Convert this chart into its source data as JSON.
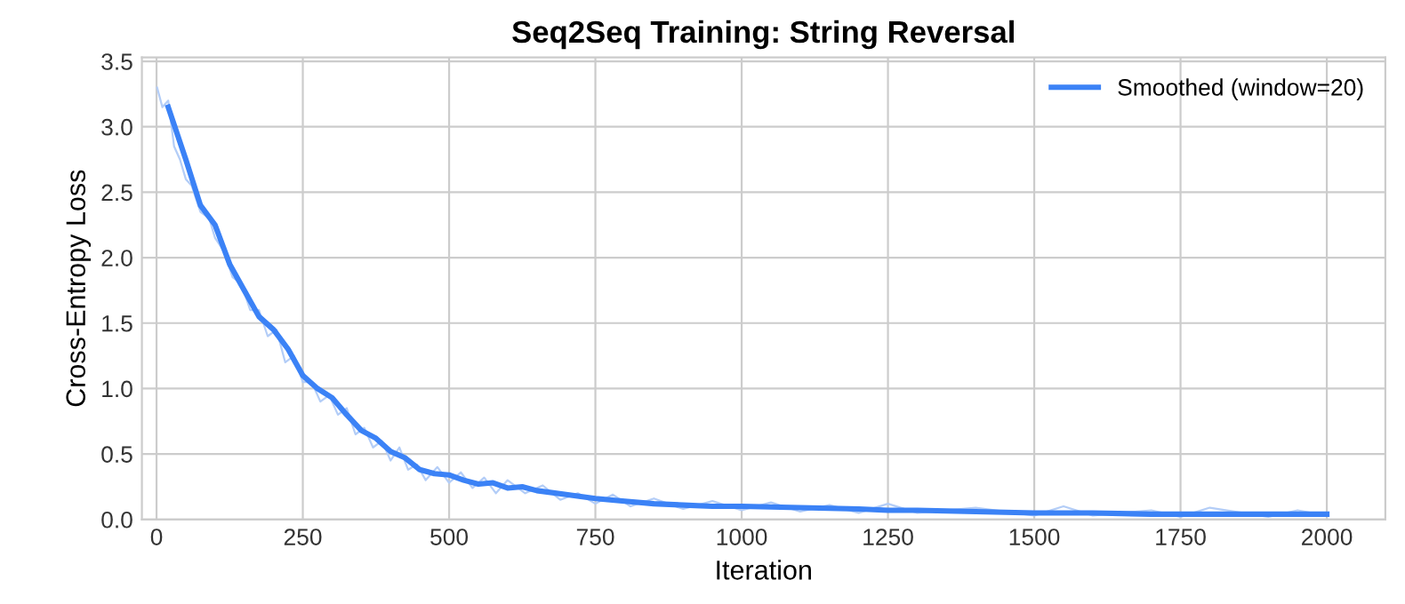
{
  "chart_data": {
    "type": "line",
    "title": "Seq2Seq Training: String Reversal",
    "xlabel": "Iteration",
    "ylabel": "Cross-Entropy Loss",
    "xlim": [
      -25,
      2100
    ],
    "xticks": [
      0,
      250,
      500,
      750,
      1000,
      1250,
      1500,
      1750,
      2000
    ],
    "ylim": [
      0,
      3.53
    ],
    "yticks": [
      {
        "value": 0,
        "label": "0.0"
      },
      0.5,
      {
        "value": 1,
        "label": "1.0"
      },
      1.5,
      {
        "value": 2,
        "label": "2.0"
      },
      2.5,
      {
        "value": 3,
        "label": "3.0"
      },
      3.5
    ],
    "grid": true,
    "legend": "top right",
    "marker": "none",
    "line_style": "solid",
    "series": [
      {
        "color": "#b3cdf7",
        "x": [
          1,
          10,
          20,
          30,
          40,
          50,
          60,
          75,
          90,
          100,
          115,
          130,
          145,
          160,
          175,
          190,
          205,
          220,
          235,
          250,
          265,
          280,
          295,
          310,
          325,
          340,
          355,
          370,
          385,
          400,
          415,
          430,
          445,
          460,
          480,
          500,
          520,
          540,
          560,
          580,
          600,
          630,
          660,
          690,
          720,
          750,
          780,
          810,
          850,
          900,
          950,
          1000,
          1050,
          1100,
          1150,
          1200,
          1250,
          1300,
          1400,
          1500,
          1550,
          1600,
          1700,
          1750,
          1800,
          1900,
          1950,
          2000
        ],
        "values": [
          3.3,
          3.15,
          3.2,
          2.85,
          2.75,
          2.6,
          2.55,
          2.35,
          2.3,
          2.15,
          2.05,
          1.85,
          1.8,
          1.6,
          1.6,
          1.4,
          1.45,
          1.2,
          1.25,
          1.05,
          1.05,
          0.9,
          0.95,
          0.8,
          0.85,
          0.65,
          0.7,
          0.55,
          0.6,
          0.45,
          0.55,
          0.38,
          0.42,
          0.3,
          0.4,
          0.28,
          0.36,
          0.24,
          0.32,
          0.2,
          0.3,
          0.2,
          0.26,
          0.15,
          0.2,
          0.12,
          0.19,
          0.1,
          0.16,
          0.08,
          0.14,
          0.07,
          0.13,
          0.06,
          0.11,
          0.05,
          0.12,
          0.05,
          0.09,
          0.03,
          0.1,
          0.03,
          0.07,
          0.02,
          0.09,
          0.02,
          0.07,
          0.03
        ]
      },
      {
        "name": "Smoothed (window=20)",
        "color": "#3b82f6",
        "x": [
          20,
          50,
          75,
          100,
          125,
          150,
          175,
          200,
          225,
          250,
          275,
          300,
          325,
          350,
          375,
          400,
          425,
          450,
          475,
          500,
          525,
          550,
          575,
          600,
          625,
          650,
          700,
          750,
          800,
          850,
          900,
          950,
          1000,
          1100,
          1200,
          1250,
          1300,
          1400,
          1500,
          1600,
          1700,
          1800,
          1900,
          2000
        ],
        "values": [
          3.15,
          2.75,
          2.4,
          2.25,
          1.95,
          1.75,
          1.55,
          1.45,
          1.3,
          1.1,
          1.0,
          0.93,
          0.8,
          0.68,
          0.62,
          0.52,
          0.47,
          0.38,
          0.35,
          0.34,
          0.3,
          0.27,
          0.28,
          0.24,
          0.25,
          0.22,
          0.19,
          0.16,
          0.14,
          0.12,
          0.11,
          0.1,
          0.1,
          0.09,
          0.08,
          0.07,
          0.07,
          0.06,
          0.05,
          0.05,
          0.04,
          0.04,
          0.04,
          0.04
        ]
      }
    ]
  }
}
